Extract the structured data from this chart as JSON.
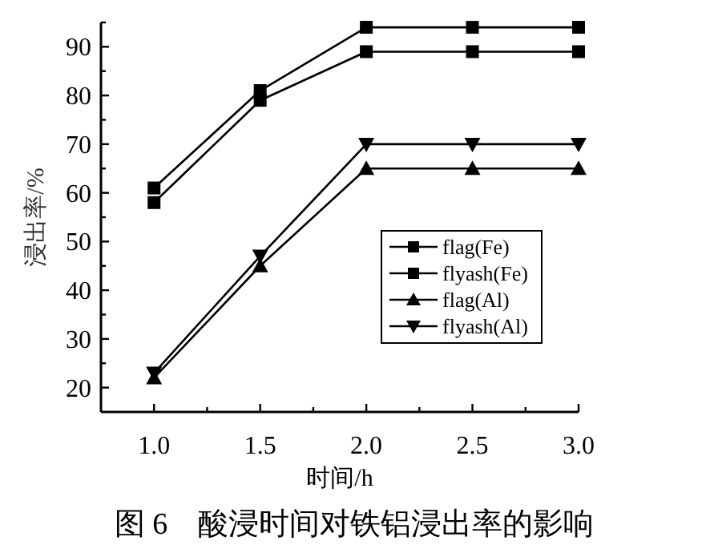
{
  "chart_data": {
    "type": "line",
    "title": "图 6　酸浸时间对铁铝浸出率的影响",
    "xlabel": "时间/h",
    "ylabel": "浸出率/%",
    "x": [
      1.0,
      1.5,
      2.0,
      2.5,
      3.0
    ],
    "xlim": [
      0.75,
      3.0
    ],
    "xticks": [
      {
        "value": 1.0,
        "label": "1.0"
      },
      {
        "value": 1.25,
        "label": null
      },
      {
        "value": 1.5,
        "label": "1.5"
      },
      {
        "value": 1.75,
        "label": null
      },
      {
        "value": 2.0,
        "label": "2.0"
      },
      {
        "value": 2.25,
        "label": null
      },
      {
        "value": 2.5,
        "label": "2.5"
      },
      {
        "value": 2.75,
        "label": null
      },
      {
        "value": 3.0,
        "label": "3.0"
      }
    ],
    "ylim": [
      15,
      95
    ],
    "yticks": [
      20,
      {
        "value": 25,
        "label": null
      },
      30,
      {
        "value": 35,
        "label": null
      },
      40,
      {
        "value": 45,
        "label": null
      },
      50,
      {
        "value": 55,
        "label": null
      },
      60,
      {
        "value": 65,
        "label": null
      },
      70,
      {
        "value": 75,
        "label": null
      },
      80,
      {
        "value": 85,
        "label": null
      },
      90,
      {
        "value": 95,
        "label": null
      }
    ],
    "legend": "right",
    "grid": false,
    "series": [
      {
        "name": "flag(Fe)",
        "color": "#000000",
        "marker": "square",
        "values": [
          61,
          81,
          94,
          94,
          94
        ]
      },
      {
        "name": "flyash(Fe)",
        "color": "#000000",
        "marker": "square",
        "values": [
          58,
          79,
          89,
          89,
          89
        ]
      },
      {
        "name": "flag(Al)",
        "color": "#000000",
        "marker": "triangle",
        "values": [
          22,
          45,
          65,
          65,
          65
        ]
      },
      {
        "name": "flyash(Al)",
        "color": "#000000",
        "marker": "triangle-down",
        "values": [
          23,
          47,
          70,
          70,
          70
        ]
      }
    ]
  }
}
